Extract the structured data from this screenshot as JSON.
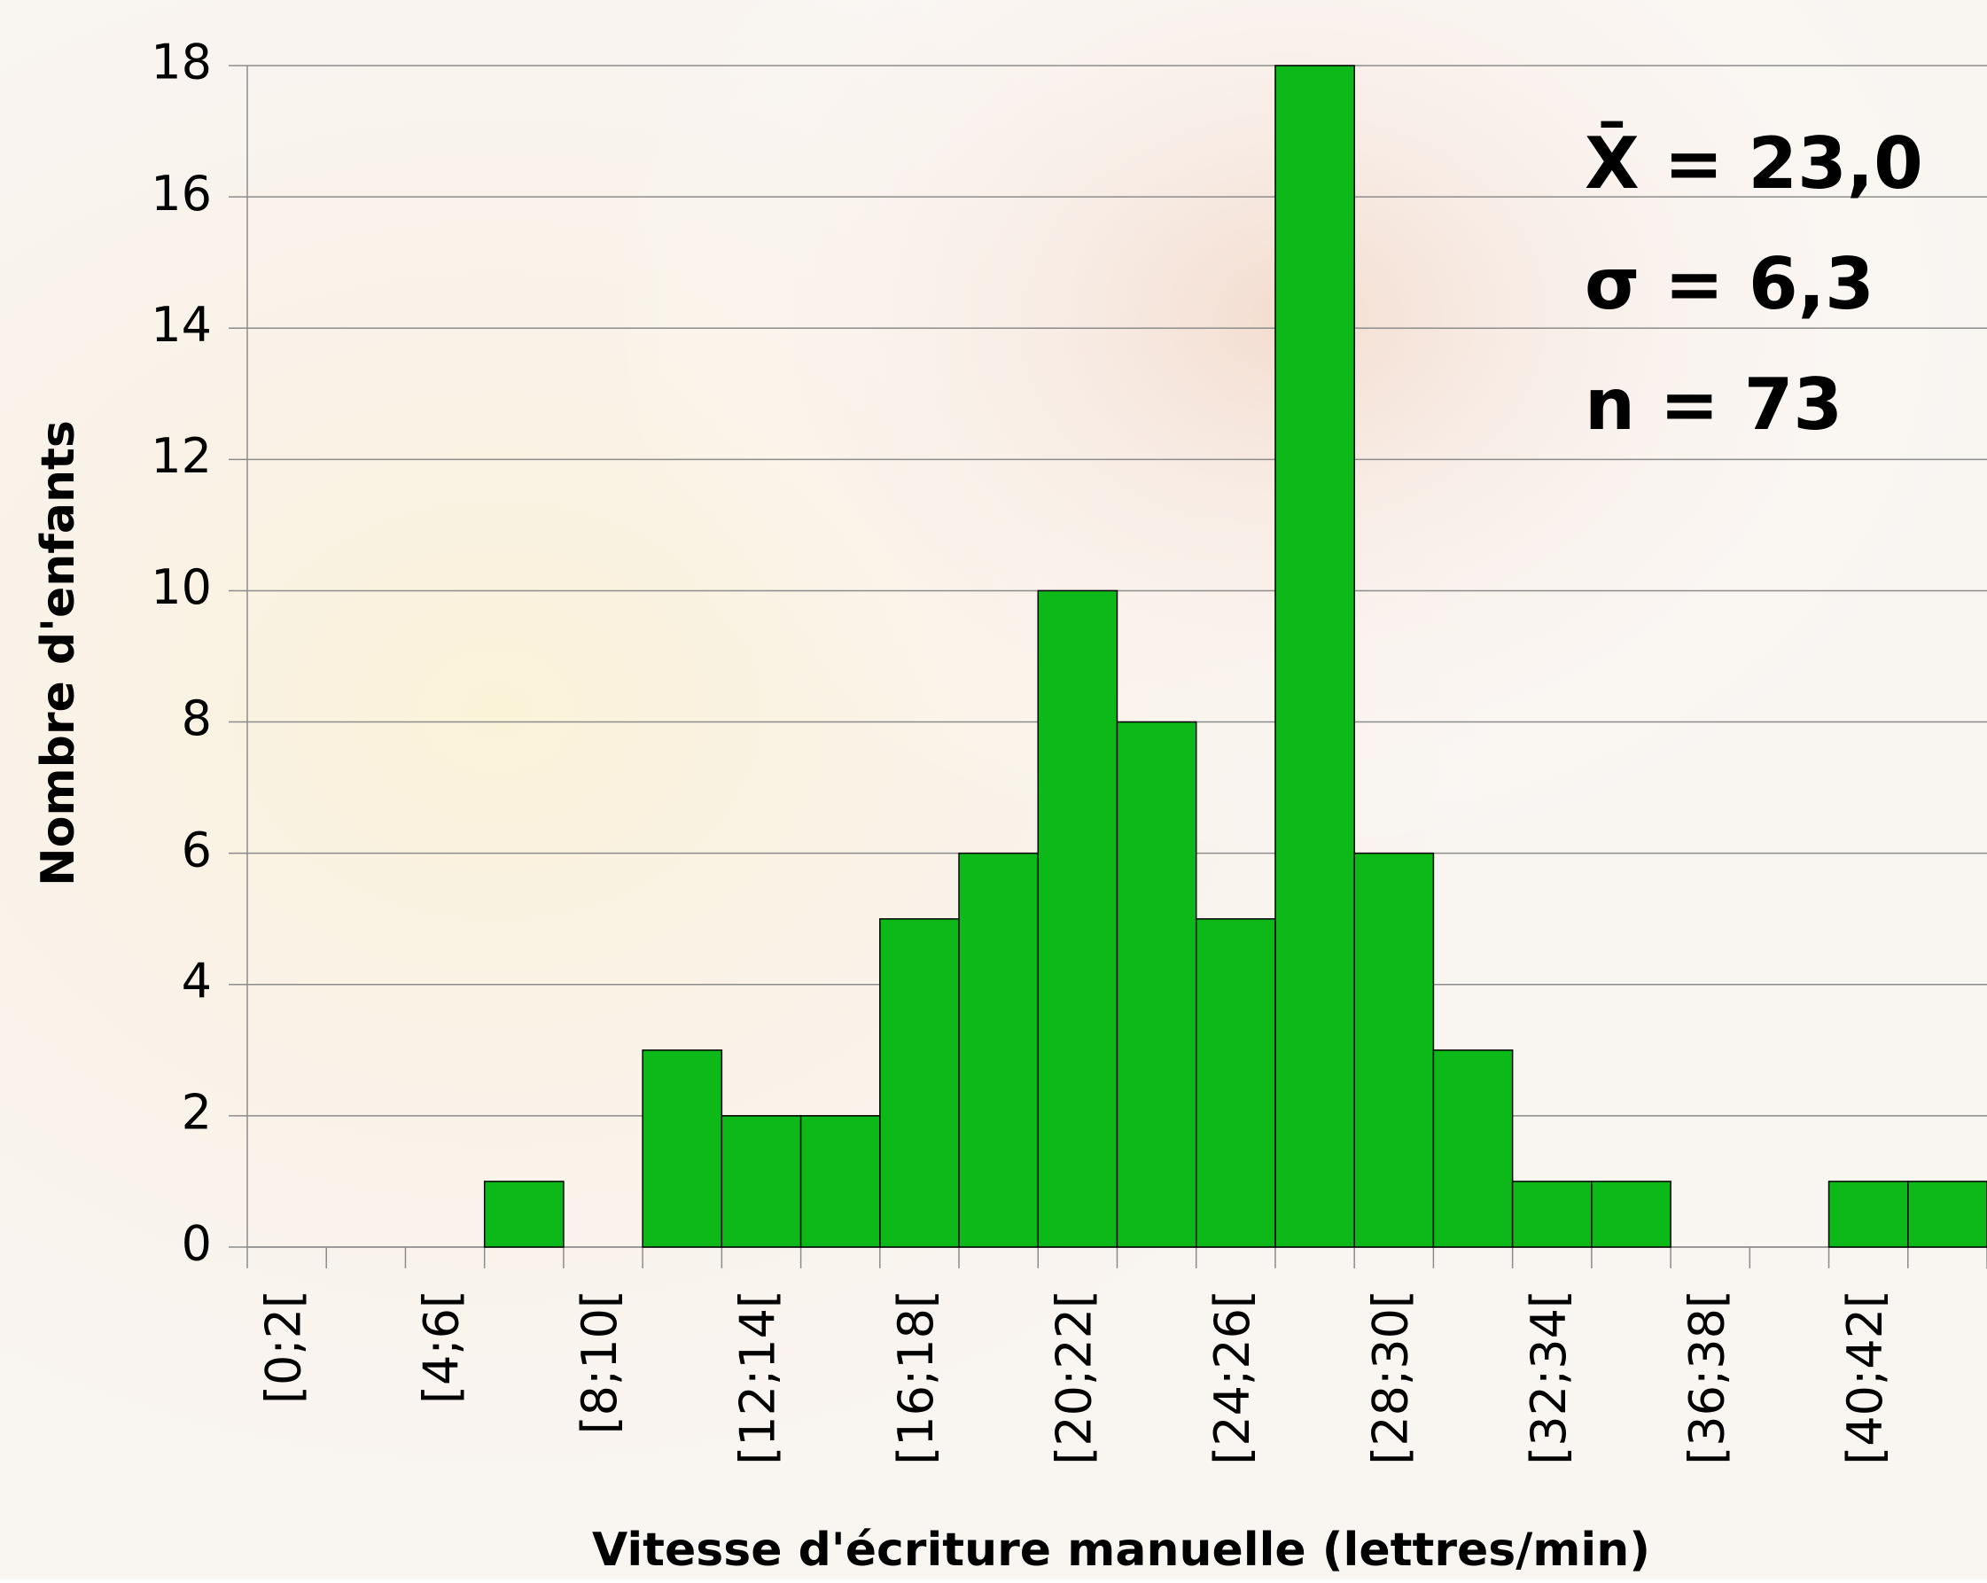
{
  "chart_data": {
    "type": "bar",
    "x_label": "Vitesse d'écriture manuelle (lettres/min)",
    "y_label": "Nombre d'enfants",
    "annotations": [
      "X̄ = 23,0",
      "σ = 6,3",
      "n = 73"
    ],
    "categories": [
      "[0;2[",
      null,
      "[4;6[",
      null,
      "[8;10[",
      null,
      "[12;14[",
      null,
      "[16;18[",
      null,
      "[20;22[",
      null,
      "[24;26[",
      null,
      "[28;30[",
      null,
      "[32;34[",
      null,
      "[36;38[",
      null,
      "[40;42[",
      null
    ],
    "values": [
      0,
      0,
      0,
      1,
      0,
      3,
      2,
      2,
      5,
      6,
      10,
      8,
      5,
      18,
      6,
      3,
      1,
      1,
      0,
      0,
      1,
      1
    ],
    "color": "#0db918",
    "ylim": [
      0,
      18
    ],
    "yticks": [
      0,
      2,
      4,
      6,
      8,
      10,
      12,
      14,
      16,
      18
    ],
    "grid": true
  }
}
